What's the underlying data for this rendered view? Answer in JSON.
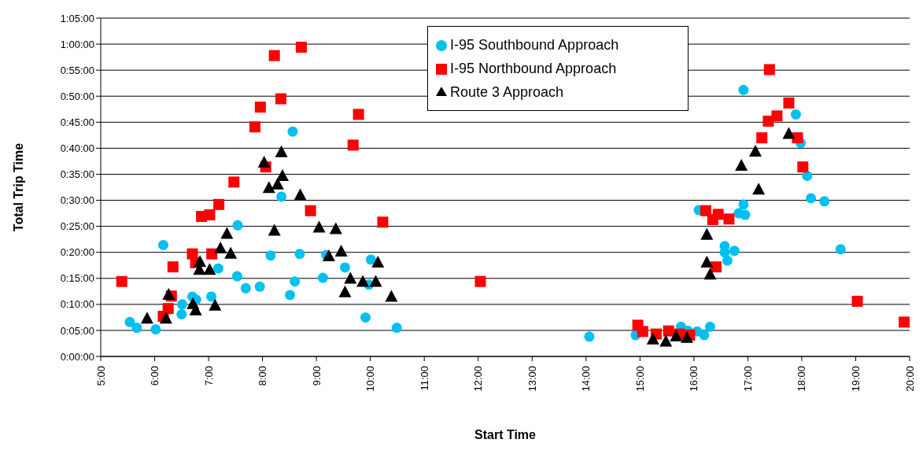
{
  "chart_data": {
    "type": "scatter",
    "xlabel": "Start Time",
    "ylabel": "Total Trip Time",
    "xlim": [
      5,
      20
    ],
    "xticks": [
      {
        "value": 5,
        "label": "5:00"
      },
      {
        "value": 6,
        "label": "6:00"
      },
      {
        "value": 7,
        "label": "7:00"
      },
      {
        "value": 8,
        "label": "8:00"
      },
      {
        "value": 9,
        "label": "9:00"
      },
      {
        "value": 10,
        "label": "10:00"
      },
      {
        "value": 11,
        "label": "11:00"
      },
      {
        "value": 12,
        "label": "12:00"
      },
      {
        "value": 13,
        "label": "13:00"
      },
      {
        "value": 14,
        "label": "14:00"
      },
      {
        "value": 15,
        "label": "15:00"
      },
      {
        "value": 16,
        "label": "16:00"
      },
      {
        "value": 17,
        "label": "17:00"
      },
      {
        "value": 18,
        "label": "18:00"
      },
      {
        "value": 19,
        "label": "19:00"
      },
      {
        "value": 20,
        "label": "20:00"
      }
    ],
    "ylim": [
      0,
      65
    ],
    "yticks": [
      {
        "value": 0,
        "label": "0:00:00"
      },
      {
        "value": 5,
        "label": "0:05:00"
      },
      {
        "value": 10,
        "label": "0:10:00"
      },
      {
        "value": 15,
        "label": "0:15:00"
      },
      {
        "value": 20,
        "label": "0:20:00"
      },
      {
        "value": 25,
        "label": "0:25:00"
      },
      {
        "value": 30,
        "label": "0:30:00"
      },
      {
        "value": 35,
        "label": "0:35:00"
      },
      {
        "value": 40,
        "label": "0:40:00"
      },
      {
        "value": 45,
        "label": "0:45:00"
      },
      {
        "value": 50,
        "label": "0:50:00"
      },
      {
        "value": 55,
        "label": "0:55:00"
      },
      {
        "value": 60,
        "label": "1:00:00"
      },
      {
        "value": 65,
        "label": "1:05:00"
      }
    ],
    "grid": "y",
    "legend": "top right",
    "series": [
      {
        "name": "I-95 Southbound Approach",
        "color": "#00c0f0",
        "marker": "circle",
        "x": [
          5.54,
          5.67,
          6.02,
          6.16,
          6.51,
          6.5,
          6.7,
          6.77,
          7.05,
          7.18,
          7.54,
          7.53,
          7.69,
          7.95,
          8.15,
          8.35,
          8.56,
          8.51,
          8.6,
          8.69,
          9.12,
          9.18,
          9.53,
          9.91,
          9.97,
          10.01,
          10.49,
          14.06,
          14.92,
          15.76,
          15.89,
          16.06,
          16.19,
          16.3,
          16.09,
          16.92,
          16.83,
          16.95,
          16.57,
          16.75,
          16.62,
          16.57,
          16.92,
          17.89,
          17.98,
          18.1,
          18.17,
          18.42,
          18.72
        ],
        "values": [
          6.6,
          5.5,
          5.2,
          21.4,
          10,
          8.1,
          11.5,
          10.9,
          11.5,
          16.9,
          25.2,
          15.4,
          13.1,
          13.4,
          19.4,
          30.7,
          43.2,
          11.8,
          14.4,
          19.7,
          15.1,
          19.5,
          17.1,
          7.5,
          13.8,
          18.6,
          5.5,
          3.8,
          4.1,
          5.7,
          4.9,
          4.8,
          4.1,
          5.7,
          28.1,
          29.2,
          27.5,
          27.2,
          21.2,
          20.3,
          18.4,
          20,
          51.2,
          46.5,
          41,
          34.7,
          30.4,
          29.8,
          20.6
        ]
      },
      {
        "name": "I-95 Northbound Approach",
        "color": "#ff0000",
        "marker": "square",
        "x": [
          5.39,
          6.16,
          6.25,
          6.34,
          6.31,
          6.7,
          6.76,
          6.87,
          7.02,
          7.06,
          7.19,
          7.47,
          7.86,
          7.96,
          8.06,
          8.22,
          8.34,
          8.72,
          8.89,
          9.68,
          9.78,
          10.23,
          12.04,
          14.96,
          15.05,
          15.3,
          15.53,
          15.73,
          15.92,
          16.22,
          16.35,
          16.45,
          16.65,
          16.41,
          17.26,
          17.38,
          17.54,
          17.4,
          17.76,
          17.92,
          18.02,
          19.03,
          19.9
        ],
        "values": [
          14.4,
          7.7,
          9.2,
          17.2,
          11.6,
          19.7,
          18,
          26.9,
          27.2,
          19.7,
          29.2,
          33.5,
          44.1,
          47.9,
          36.4,
          57.8,
          49.5,
          59.4,
          28,
          40.6,
          46.5,
          25.8,
          14.4,
          6,
          4.8,
          4.3,
          4.9,
          4.3,
          4.1,
          28,
          26.3,
          27.3,
          26.4,
          17.2,
          42,
          45.2,
          46.2,
          55.1,
          48.7,
          42,
          36.4,
          10.6,
          6.6
        ]
      },
      {
        "name": "Route 3 Approach",
        "color": "#000000",
        "marker": "triangle",
        "x": [
          5.86,
          6.21,
          6.26,
          6.76,
          6.71,
          6.84,
          6.83,
          7.02,
          7.12,
          7.22,
          7.34,
          7.41,
          8.03,
          8.12,
          8.22,
          8.28,
          8.37,
          8.35,
          8.7,
          9.05,
          9.36,
          9.46,
          9.23,
          9.63,
          9.53,
          9.86,
          10.1,
          10.14,
          10.39,
          15.24,
          15.48,
          15.67,
          15.87,
          16.24,
          16.24,
          16.3,
          16.88,
          17.14,
          17.2,
          17.76
        ],
        "values": [
          7.2,
          7.2,
          11.8,
          8.8,
          10,
          18.1,
          16.6,
          16.6,
          9.7,
          20.7,
          23.5,
          19.7,
          37.2,
          32.3,
          24.1,
          33,
          34.6,
          39.2,
          30.9,
          24.7,
          24.4,
          20.1,
          19.2,
          14.9,
          12.3,
          14.3,
          14.3,
          18,
          11.4,
          3.2,
          2.8,
          3.8,
          3.5,
          23.3,
          18,
          15.7,
          36.6,
          39.3,
          32,
          42.7
        ]
      }
    ]
  }
}
